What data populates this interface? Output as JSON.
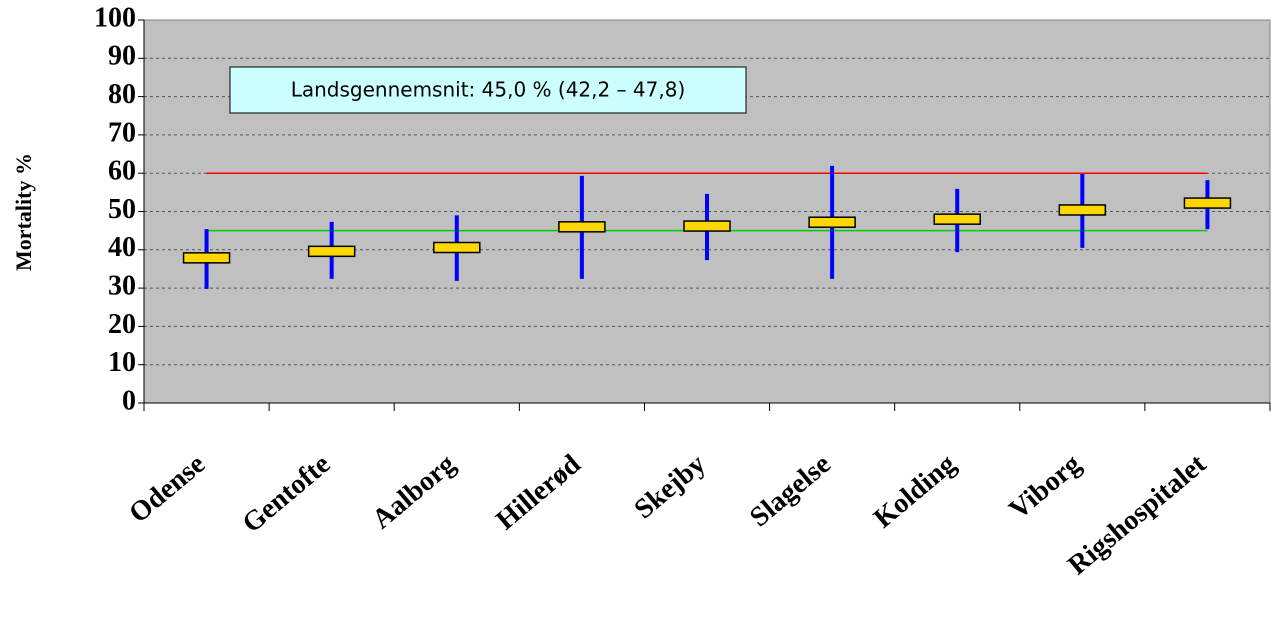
{
  "chart_data": {
    "type": "errorbar",
    "ylabel": "Mortality %",
    "annotation": "Landsgennemsnit: 45,0 % (42,2 – 47,8)",
    "categories": [
      "Odense",
      "Gentofte",
      "Aalborg",
      "Hillerød",
      "Skejby",
      "Slagelse",
      "Kolding",
      "Viborg",
      "Rigshospitalet"
    ],
    "values": [
      37.9,
      39.6,
      40.6,
      46,
      46.2,
      47.2,
      48,
      50.4,
      52.2
    ],
    "lower": [
      29.8,
      32.4,
      31.9,
      32.4,
      37.3,
      32.4,
      39.4,
      40.5,
      45.4
    ],
    "upper": [
      45.4,
      47.3,
      49,
      59.3,
      54.6,
      61.9,
      55.9,
      59.8,
      58.2
    ],
    "color": "#ffd700",
    "error_color": "#0000ff",
    "reference_lines": [
      {
        "value": 60,
        "color": "#ff0000"
      },
      {
        "value": 45,
        "color": "#00cc00"
      }
    ],
    "ylim": [
      0,
      100
    ],
    "yticks": [
      0,
      10,
      20,
      30,
      40,
      50,
      60,
      70,
      80,
      90,
      100
    ],
    "grid": true
  }
}
